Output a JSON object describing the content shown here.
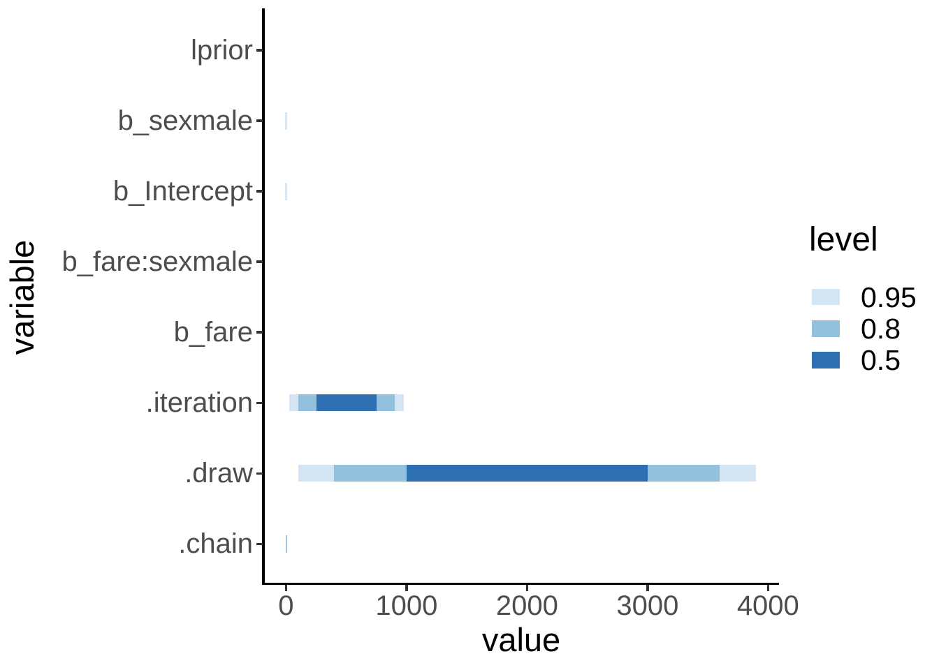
{
  "figure": {
    "background": "#ffffff",
    "x_axis_title": "value",
    "y_axis_title": "variable",
    "legend": {
      "title": "level",
      "items": [
        {
          "label": "0.95",
          "color": "#d4e4f3"
        },
        {
          "label": "0.8",
          "color": "#92c0dd"
        },
        {
          "label": "0.5",
          "color": "#2e6fb2"
        }
      ]
    }
  },
  "chart_data": {
    "type": "interval",
    "orientation": "horizontal",
    "title": "",
    "xlabel": "value",
    "ylabel": "variable",
    "legend_title": "level",
    "legend_position": "right",
    "grid": false,
    "x_ticks": [
      0,
      1000,
      2000,
      3000,
      4000
    ],
    "x_range": [
      -190,
      4090
    ],
    "categories_top_to_bottom": [
      "lprior",
      "b_sexmale",
      "b_Intercept",
      "b_fare:sexmale",
      "b_fare",
      ".iteration",
      ".draw",
      ".chain"
    ],
    "levels": [
      {
        "level": "0.95",
        "color": "#d4e4f3"
      },
      {
        "level": "0.8",
        "color": "#92c0dd"
      },
      {
        "level": "0.5",
        "color": "#2e6fb2"
      }
    ],
    "rows": [
      {
        "variable": "lprior",
        "visible": "none"
      },
      {
        "variable": "b_sexmale",
        "visible": "sliver",
        "at_value": 0,
        "sliver_color": "#d9e7f4"
      },
      {
        "variable": "b_Intercept",
        "visible": "sliver",
        "at_value": 0,
        "sliver_color": "#d9e7f4"
      },
      {
        "variable": "b_fare:sexmale",
        "visible": "none"
      },
      {
        "variable": "b_fare",
        "visible": "none"
      },
      {
        "variable": ".iteration",
        "visible": "intervals",
        "intervals": [
          {
            "level": "0.95",
            "lo": 25,
            "hi": 975
          },
          {
            "level": "0.8",
            "lo": 100,
            "hi": 900
          },
          {
            "level": "0.5",
            "lo": 250,
            "hi": 750
          }
        ]
      },
      {
        "variable": ".draw",
        "visible": "intervals",
        "intervals": [
          {
            "level": "0.95",
            "lo": 100,
            "hi": 3900
          },
          {
            "level": "0.8",
            "lo": 400,
            "hi": 3600
          },
          {
            "level": "0.5",
            "lo": 1000,
            "hi": 3000
          }
        ]
      },
      {
        "variable": ".chain",
        "visible": "sliver",
        "at_value": 2.5,
        "sliver_color": "#a0c6e2"
      }
    ]
  }
}
